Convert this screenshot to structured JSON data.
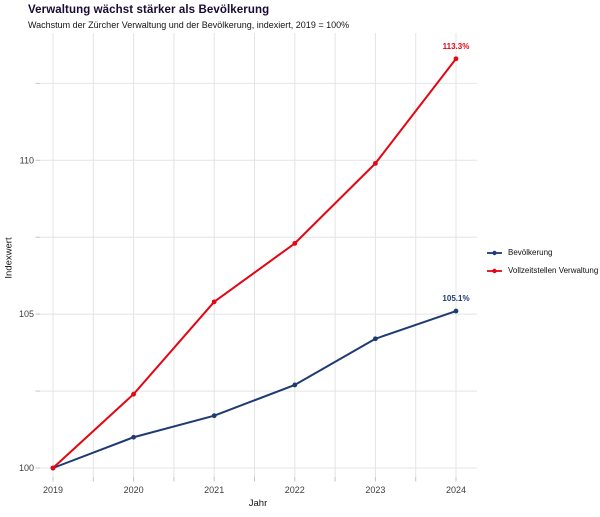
{
  "chart": {
    "title": "Verwaltung wächst stärker als Bevölkerung",
    "subtitle": "Wachstum der Zürcher Verwaltung und der Bevölkerung, indexiert, 2019 = 100%",
    "xlabel": "Jahr",
    "ylabel": "Indexwert"
  },
  "chart_data": {
    "type": "line",
    "title": "Verwaltung wächst stärker als Bevölkerung",
    "subtitle": "Wachstum der Zürcher Verwaltung und der Bevölkerung, indexiert, 2019 = 100%",
    "xlabel": "Jahr",
    "ylabel": "Indexwert",
    "x": [
      2019,
      2020,
      2021,
      2022,
      2023,
      2024
    ],
    "x_tick_labels": [
      "2019",
      "2020",
      "2021",
      "2022",
      "2023",
      "2024"
    ],
    "series": [
      {
        "name": "Bevölkerung",
        "color": "#1f3b73",
        "values": [
          100,
          101.0,
          101.7,
          102.7,
          104.2,
          105.1
        ],
        "end_label": "105.1%"
      },
      {
        "name": "Vollzeitstellen Verwaltung",
        "color": "#e30613",
        "values": [
          100,
          102.4,
          105.4,
          107.3,
          109.9,
          113.3
        ],
        "end_label": "113.3%"
      }
    ],
    "y_breaks": [
      100,
      102.5,
      105,
      107.5,
      110,
      112.5
    ],
    "y_labeled_breaks": [
      100,
      105,
      110
    ],
    "x_break_step": 0.5,
    "ylim": [
      99.7,
      114.1
    ],
    "xlim": [
      2018.84,
      2024.26
    ],
    "grid": true,
    "legend_position": "right",
    "colors": {
      "gridline": "#e4e4e4",
      "tick": "#c4c4c4",
      "tick_label": "#3d3d3d"
    }
  }
}
